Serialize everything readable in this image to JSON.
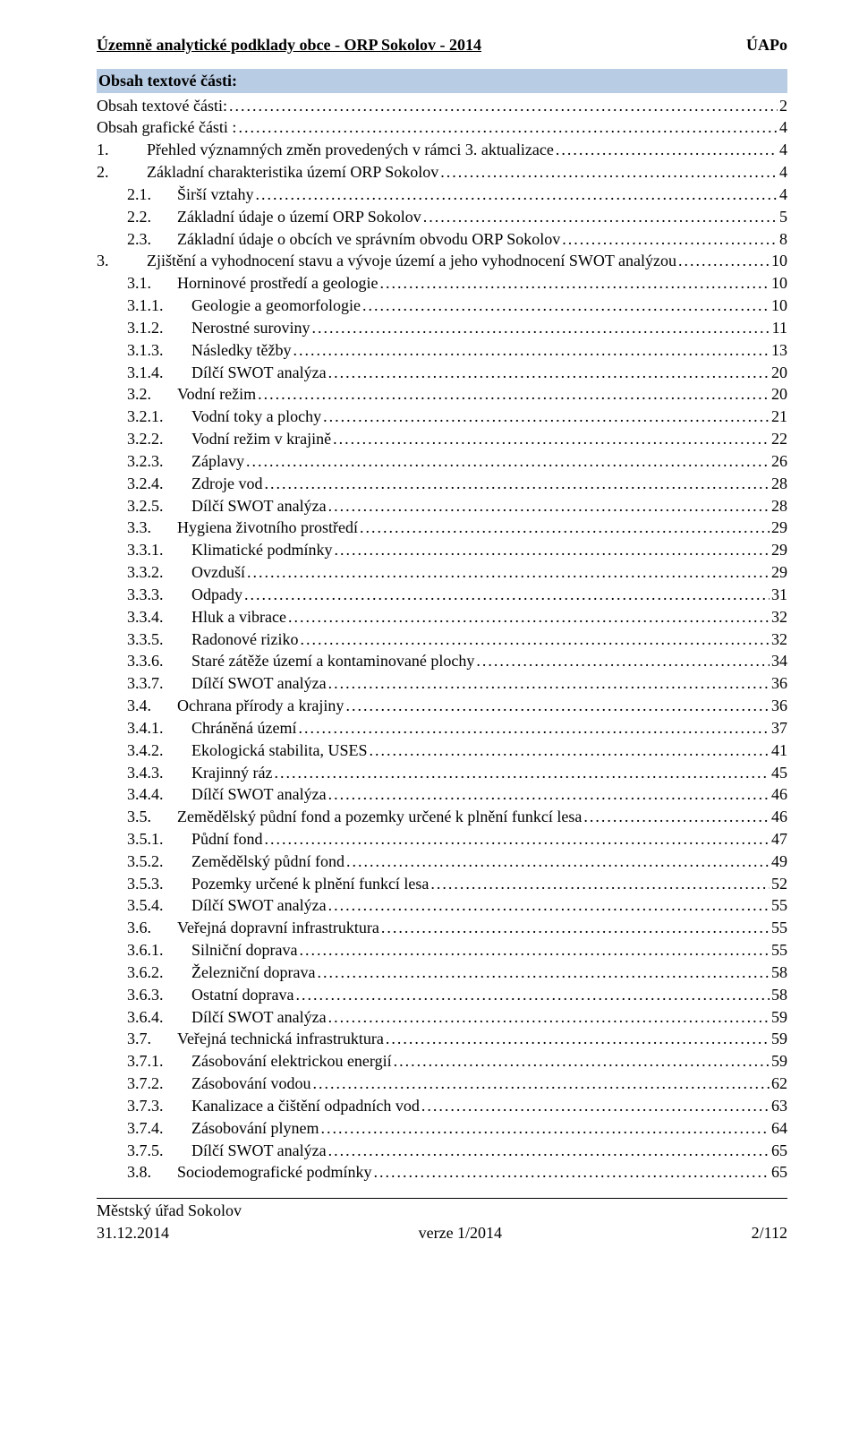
{
  "header": {
    "left": "Územně analytické podklady obce - ORP Sokolov - 2014",
    "right": "ÚAPo"
  },
  "sectionTitle": "Obsah textové části:",
  "toc": [
    {
      "level": 0,
      "num": "",
      "label": "Obsah textové části:",
      "page": "2"
    },
    {
      "level": 0,
      "num": "",
      "label": "Obsah grafické části :",
      "page": "4"
    },
    {
      "level": 1,
      "num": "1.",
      "label": "Přehled významných změn provedených v rámci 3. aktualizace",
      "page": "4"
    },
    {
      "level": 1,
      "num": "2.",
      "label": "Základní charakteristika území ORP Sokolov",
      "page": "4"
    },
    {
      "level": 2,
      "num": "2.1.",
      "label": "Širší vztahy",
      "page": "4"
    },
    {
      "level": 2,
      "num": "2.2.",
      "label": "Základní údaje o území ORP Sokolov",
      "page": "5"
    },
    {
      "level": 2,
      "num": "2.3.",
      "label": "Základní údaje o obcích ve správním obvodu ORP Sokolov",
      "page": "8"
    },
    {
      "level": 1,
      "num": "3.",
      "label": "Zjištění a vyhodnocení stavu a vývoje území a jeho vyhodnocení  SWOT analýzou",
      "page": "10"
    },
    {
      "level": 2,
      "num": "3.1.",
      "label": "Horninové prostředí a geologie",
      "page": "10"
    },
    {
      "level": 3,
      "num": "3.1.1.",
      "label": "Geologie a geomorfologie",
      "page": "10"
    },
    {
      "level": 3,
      "num": "3.1.2.",
      "label": "Nerostné suroviny",
      "page": "11"
    },
    {
      "level": 3,
      "num": "3.1.3.",
      "label": "Následky těžby",
      "page": "13"
    },
    {
      "level": 3,
      "num": "3.1.4.",
      "label": "Dílčí SWOT analýza",
      "page": "20"
    },
    {
      "level": 2,
      "num": "3.2.",
      "label": "Vodní režim",
      "page": "20"
    },
    {
      "level": 3,
      "num": "3.2.1.",
      "label": "Vodní toky a plochy",
      "page": "21"
    },
    {
      "level": 3,
      "num": "3.2.2.",
      "label": "Vodní režim v krajině",
      "page": "22"
    },
    {
      "level": 3,
      "num": "3.2.3.",
      "label": "Záplavy",
      "page": "26"
    },
    {
      "level": 3,
      "num": "3.2.4.",
      "label": "Zdroje vod",
      "page": "28"
    },
    {
      "level": 3,
      "num": "3.2.5.",
      "label": "Dílčí SWOT analýza",
      "page": "28"
    },
    {
      "level": 2,
      "num": "3.3.",
      "label": "Hygiena životního prostředí",
      "page": "29"
    },
    {
      "level": 3,
      "num": "3.3.1.",
      "label": "Klimatické podmínky",
      "page": "29"
    },
    {
      "level": 3,
      "num": "3.3.2.",
      "label": "Ovzduší",
      "page": "29"
    },
    {
      "level": 3,
      "num": "3.3.3.",
      "label": "Odpady",
      "page": "31"
    },
    {
      "level": 3,
      "num": "3.3.4.",
      "label": "Hluk a vibrace",
      "page": "32"
    },
    {
      "level": 3,
      "num": "3.3.5.",
      "label": "Radonové riziko",
      "page": "32"
    },
    {
      "level": 3,
      "num": "3.3.6.",
      "label": "Staré zátěže území a kontaminované plochy",
      "page": "34"
    },
    {
      "level": 3,
      "num": "3.3.7.",
      "label": "Dílčí SWOT analýza",
      "page": "36"
    },
    {
      "level": 2,
      "num": "3.4.",
      "label": "Ochrana přírody a krajiny",
      "page": "36"
    },
    {
      "level": 3,
      "num": "3.4.1.",
      "label": "Chráněná území",
      "page": "37"
    },
    {
      "level": 3,
      "num": "3.4.2.",
      "label": "Ekologická stabilita, USES",
      "page": "41"
    },
    {
      "level": 3,
      "num": "3.4.3.",
      "label": "Krajinný ráz",
      "page": "45"
    },
    {
      "level": 3,
      "num": "3.4.4.",
      "label": "Dílčí SWOT analýza",
      "page": "46"
    },
    {
      "level": 2,
      "num": "3.5.",
      "label": "Zemědělský půdní fond a pozemky určené k plnění funkcí lesa",
      "page": "46"
    },
    {
      "level": 3,
      "num": "3.5.1.",
      "label": "Půdní fond",
      "page": "47"
    },
    {
      "level": 3,
      "num": "3.5.2.",
      "label": "Zemědělský půdní fond",
      "page": "49"
    },
    {
      "level": 3,
      "num": "3.5.3.",
      "label": "Pozemky určené k plnění funkcí lesa",
      "page": "52"
    },
    {
      "level": 3,
      "num": "3.5.4.",
      "label": "Dílčí SWOT analýza",
      "page": "55"
    },
    {
      "level": 2,
      "num": "3.6.",
      "label": "Veřejná dopravní infrastruktura",
      "page": "55"
    },
    {
      "level": 3,
      "num": "3.6.1.",
      "label": "Silniční doprava",
      "page": "55"
    },
    {
      "level": 3,
      "num": "3.6.2.",
      "label": "Železniční doprava",
      "page": "58"
    },
    {
      "level": 3,
      "num": "3.6.3.",
      "label": "Ostatní doprava",
      "page": "58"
    },
    {
      "level": 3,
      "num": "3.6.4.",
      "label": "Dílčí SWOT analýza",
      "page": "59"
    },
    {
      "level": 2,
      "num": "3.7.",
      "label": "Veřejná technická infrastruktura",
      "page": "59"
    },
    {
      "level": 3,
      "num": "3.7.1.",
      "label": "Zásobování elektrickou energií",
      "page": "59"
    },
    {
      "level": 3,
      "num": "3.7.2.",
      "label": "Zásobování vodou",
      "page": "62"
    },
    {
      "level": 3,
      "num": "3.7.3.",
      "label": "Kanalizace a čištění odpadních vod",
      "page": "63"
    },
    {
      "level": 3,
      "num": "3.7.4.",
      "label": "Zásobování plynem",
      "page": "64"
    },
    {
      "level": 3,
      "num": "3.7.5.",
      "label": "Dílčí SWOT analýza",
      "page": "65"
    },
    {
      "level": 2,
      "num": "3.8.",
      "label": "Sociodemografické podmínky",
      "page": "65"
    }
  ],
  "footer": {
    "left_line1": "Městský úřad Sokolov",
    "left_line2": "31.12.2014",
    "mid": "verze 1/2014",
    "right": "2/112"
  }
}
